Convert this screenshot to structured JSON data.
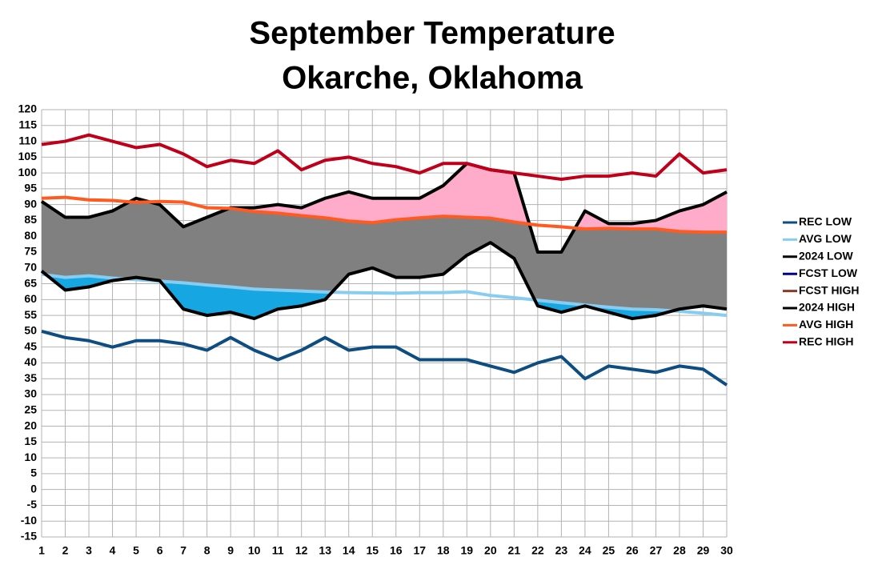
{
  "chart_data": {
    "type": "line",
    "title": "September Temperature",
    "subtitle": "Okarche, Oklahoma",
    "x": [
      1,
      2,
      3,
      4,
      5,
      6,
      7,
      8,
      9,
      10,
      11,
      12,
      13,
      14,
      15,
      16,
      17,
      18,
      19,
      20,
      21,
      22,
      23,
      24,
      25,
      26,
      27,
      28,
      29,
      30
    ],
    "xlim": [
      1,
      30
    ],
    "xticks": [
      1,
      2,
      3,
      4,
      5,
      6,
      7,
      8,
      9,
      10,
      11,
      12,
      13,
      14,
      15,
      16,
      17,
      18,
      19,
      20,
      21,
      22,
      23,
      24,
      25,
      26,
      27,
      28,
      29,
      30
    ],
    "ylim": [
      -15,
      120
    ],
    "yticks": [
      -15,
      -10,
      -5,
      0,
      5,
      10,
      15,
      20,
      25,
      30,
      35,
      40,
      45,
      50,
      55,
      60,
      65,
      70,
      75,
      80,
      85,
      90,
      95,
      100,
      105,
      110,
      115,
      120
    ],
    "grid": true,
    "legend": "right",
    "series": [
      {
        "name": "REC LOW",
        "color": "#0d4d82",
        "values": [
          50,
          48,
          47,
          45,
          47,
          47,
          46,
          44,
          48,
          44,
          41,
          44,
          48,
          44,
          45,
          45,
          41,
          41,
          41,
          39,
          37,
          40,
          42,
          35,
          39,
          38,
          37,
          39,
          38,
          33
        ]
      },
      {
        "name": "AVG LOW",
        "color": "#87cdf2",
        "values": [
          68,
          67,
          67.5,
          66.8,
          66.3,
          65.8,
          65.3,
          64.6,
          64,
          63.3,
          63,
          62.7,
          62.4,
          62.2,
          62.1,
          62,
          62.2,
          62.2,
          62.5,
          61.3,
          60.6,
          59.8,
          59,
          58.3,
          57.6,
          57,
          56.8,
          56.3,
          55.7,
          55
        ]
      },
      {
        "name": "2024 LOW",
        "color": "#000000",
        "values": [
          69,
          63,
          64,
          66,
          67,
          66,
          57,
          55,
          56,
          54,
          57,
          58,
          60,
          68,
          70,
          67,
          67,
          68,
          74,
          78,
          73,
          58,
          56,
          58,
          56,
          54,
          55,
          57,
          58,
          57
        ]
      },
      {
        "name": "FCST LOW",
        "color": "#000080",
        "values": [
          null,
          null,
          null,
          null,
          null,
          null,
          null,
          null,
          null,
          null,
          null,
          null,
          null,
          null,
          null,
          null,
          null,
          null,
          null,
          null,
          null,
          null,
          null,
          null,
          null,
          null,
          null,
          null,
          null,
          null
        ]
      },
      {
        "name": "FCST HIGH",
        "color": "#8b3a2a",
        "values": [
          null,
          null,
          null,
          null,
          null,
          null,
          null,
          null,
          null,
          null,
          null,
          null,
          null,
          null,
          null,
          null,
          null,
          null,
          null,
          null,
          null,
          null,
          null,
          null,
          null,
          null,
          null,
          null,
          null,
          null
        ]
      },
      {
        "name": "2024 HIGH",
        "color": "#000000",
        "values": [
          91,
          86,
          86,
          88,
          92,
          90,
          83,
          86,
          89,
          89,
          90,
          89,
          92,
          94,
          92,
          92,
          92,
          96,
          103,
          101,
          100,
          75,
          75,
          88,
          84,
          84,
          85,
          88,
          90,
          94
        ]
      },
      {
        "name": "AVG HIGH",
        "color": "#ff5a1f",
        "values": [
          92,
          92.3,
          91.5,
          91.3,
          90.7,
          91,
          90.8,
          89,
          88.8,
          87.8,
          87.3,
          86.5,
          85.8,
          84.8,
          84.3,
          85.2,
          85.8,
          86.3,
          86,
          85.7,
          84.5,
          83.5,
          83,
          82.3,
          82.5,
          82.3,
          82.3,
          81.5,
          81.3,
          81.3
        ]
      },
      {
        "name": "REC HIGH",
        "color": "#c0001a",
        "values": [
          109,
          110,
          112,
          110,
          108,
          109,
          106,
          102,
          104,
          103,
          107,
          101,
          104,
          105,
          103,
          102,
          100,
          103,
          103,
          101,
          100,
          99,
          98,
          99,
          99,
          100,
          99,
          106,
          100,
          101
        ]
      }
    ]
  }
}
